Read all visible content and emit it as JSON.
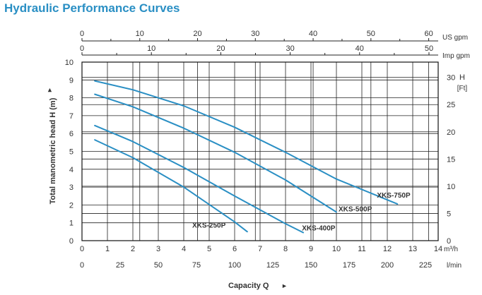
{
  "title": "Hydraulic Performance Curves",
  "chart_data": {
    "type": "line",
    "title": "Hydraulic Performance Curves",
    "xlabel": "Capacity Q",
    "ylabel": "Total manometric head H (m)",
    "xlim": [
      0,
      14
    ],
    "ylim": [
      0,
      10
    ],
    "grid": true,
    "legend": "inline labels at curve ends",
    "x_ticks": [
      "0",
      "1",
      "2",
      "3",
      "4",
      "5",
      "6",
      "7",
      "8",
      "9",
      "10",
      "11",
      "12",
      "13",
      "14"
    ],
    "x_unit": "m³/h",
    "lmin_ticks": [
      "0",
      "25",
      "50",
      "75",
      "100",
      "125",
      "150",
      "175",
      "200",
      "225"
    ],
    "lmin_unit": "l/min",
    "usgpm_ticks": [
      "0",
      "10",
      "20",
      "30",
      "40",
      "50",
      "60"
    ],
    "usgpm_unit": "US gpm",
    "impgpm_ticks": [
      "0",
      "10",
      "20",
      "30",
      "40",
      "50"
    ],
    "impgpm_unit": "Imp gpm",
    "y_ticks": [
      "0",
      "1",
      "2",
      "3",
      "4",
      "5",
      "6",
      "7",
      "8",
      "9",
      "10"
    ],
    "ft_ticks": [
      "0",
      "5",
      "10",
      "15",
      "20",
      "25",
      "30"
    ],
    "ft_label": "H",
    "ft_unit": "[Ft]",
    "series": [
      {
        "name": "XKS-750P",
        "x": [
          0.5,
          2,
          4,
          6,
          8,
          10,
          12.4
        ],
        "y": [
          8.95,
          8.45,
          7.55,
          6.35,
          4.95,
          3.45,
          2.05
        ]
      },
      {
        "name": "XKS-500P",
        "x": [
          0.5,
          2,
          4,
          6,
          8,
          10
        ],
        "y": [
          8.2,
          7.5,
          6.3,
          4.95,
          3.4,
          1.6
        ]
      },
      {
        "name": "XKS-400P",
        "x": [
          0.5,
          2,
          4,
          6,
          8,
          8.7
        ],
        "y": [
          6.45,
          5.55,
          4.1,
          2.5,
          0.95,
          0.45
        ]
      },
      {
        "name": "XKS-250P",
        "x": [
          0.5,
          2,
          4,
          6,
          6.5
        ],
        "y": [
          5.65,
          4.65,
          3.0,
          1.05,
          0.5
        ]
      }
    ]
  }
}
